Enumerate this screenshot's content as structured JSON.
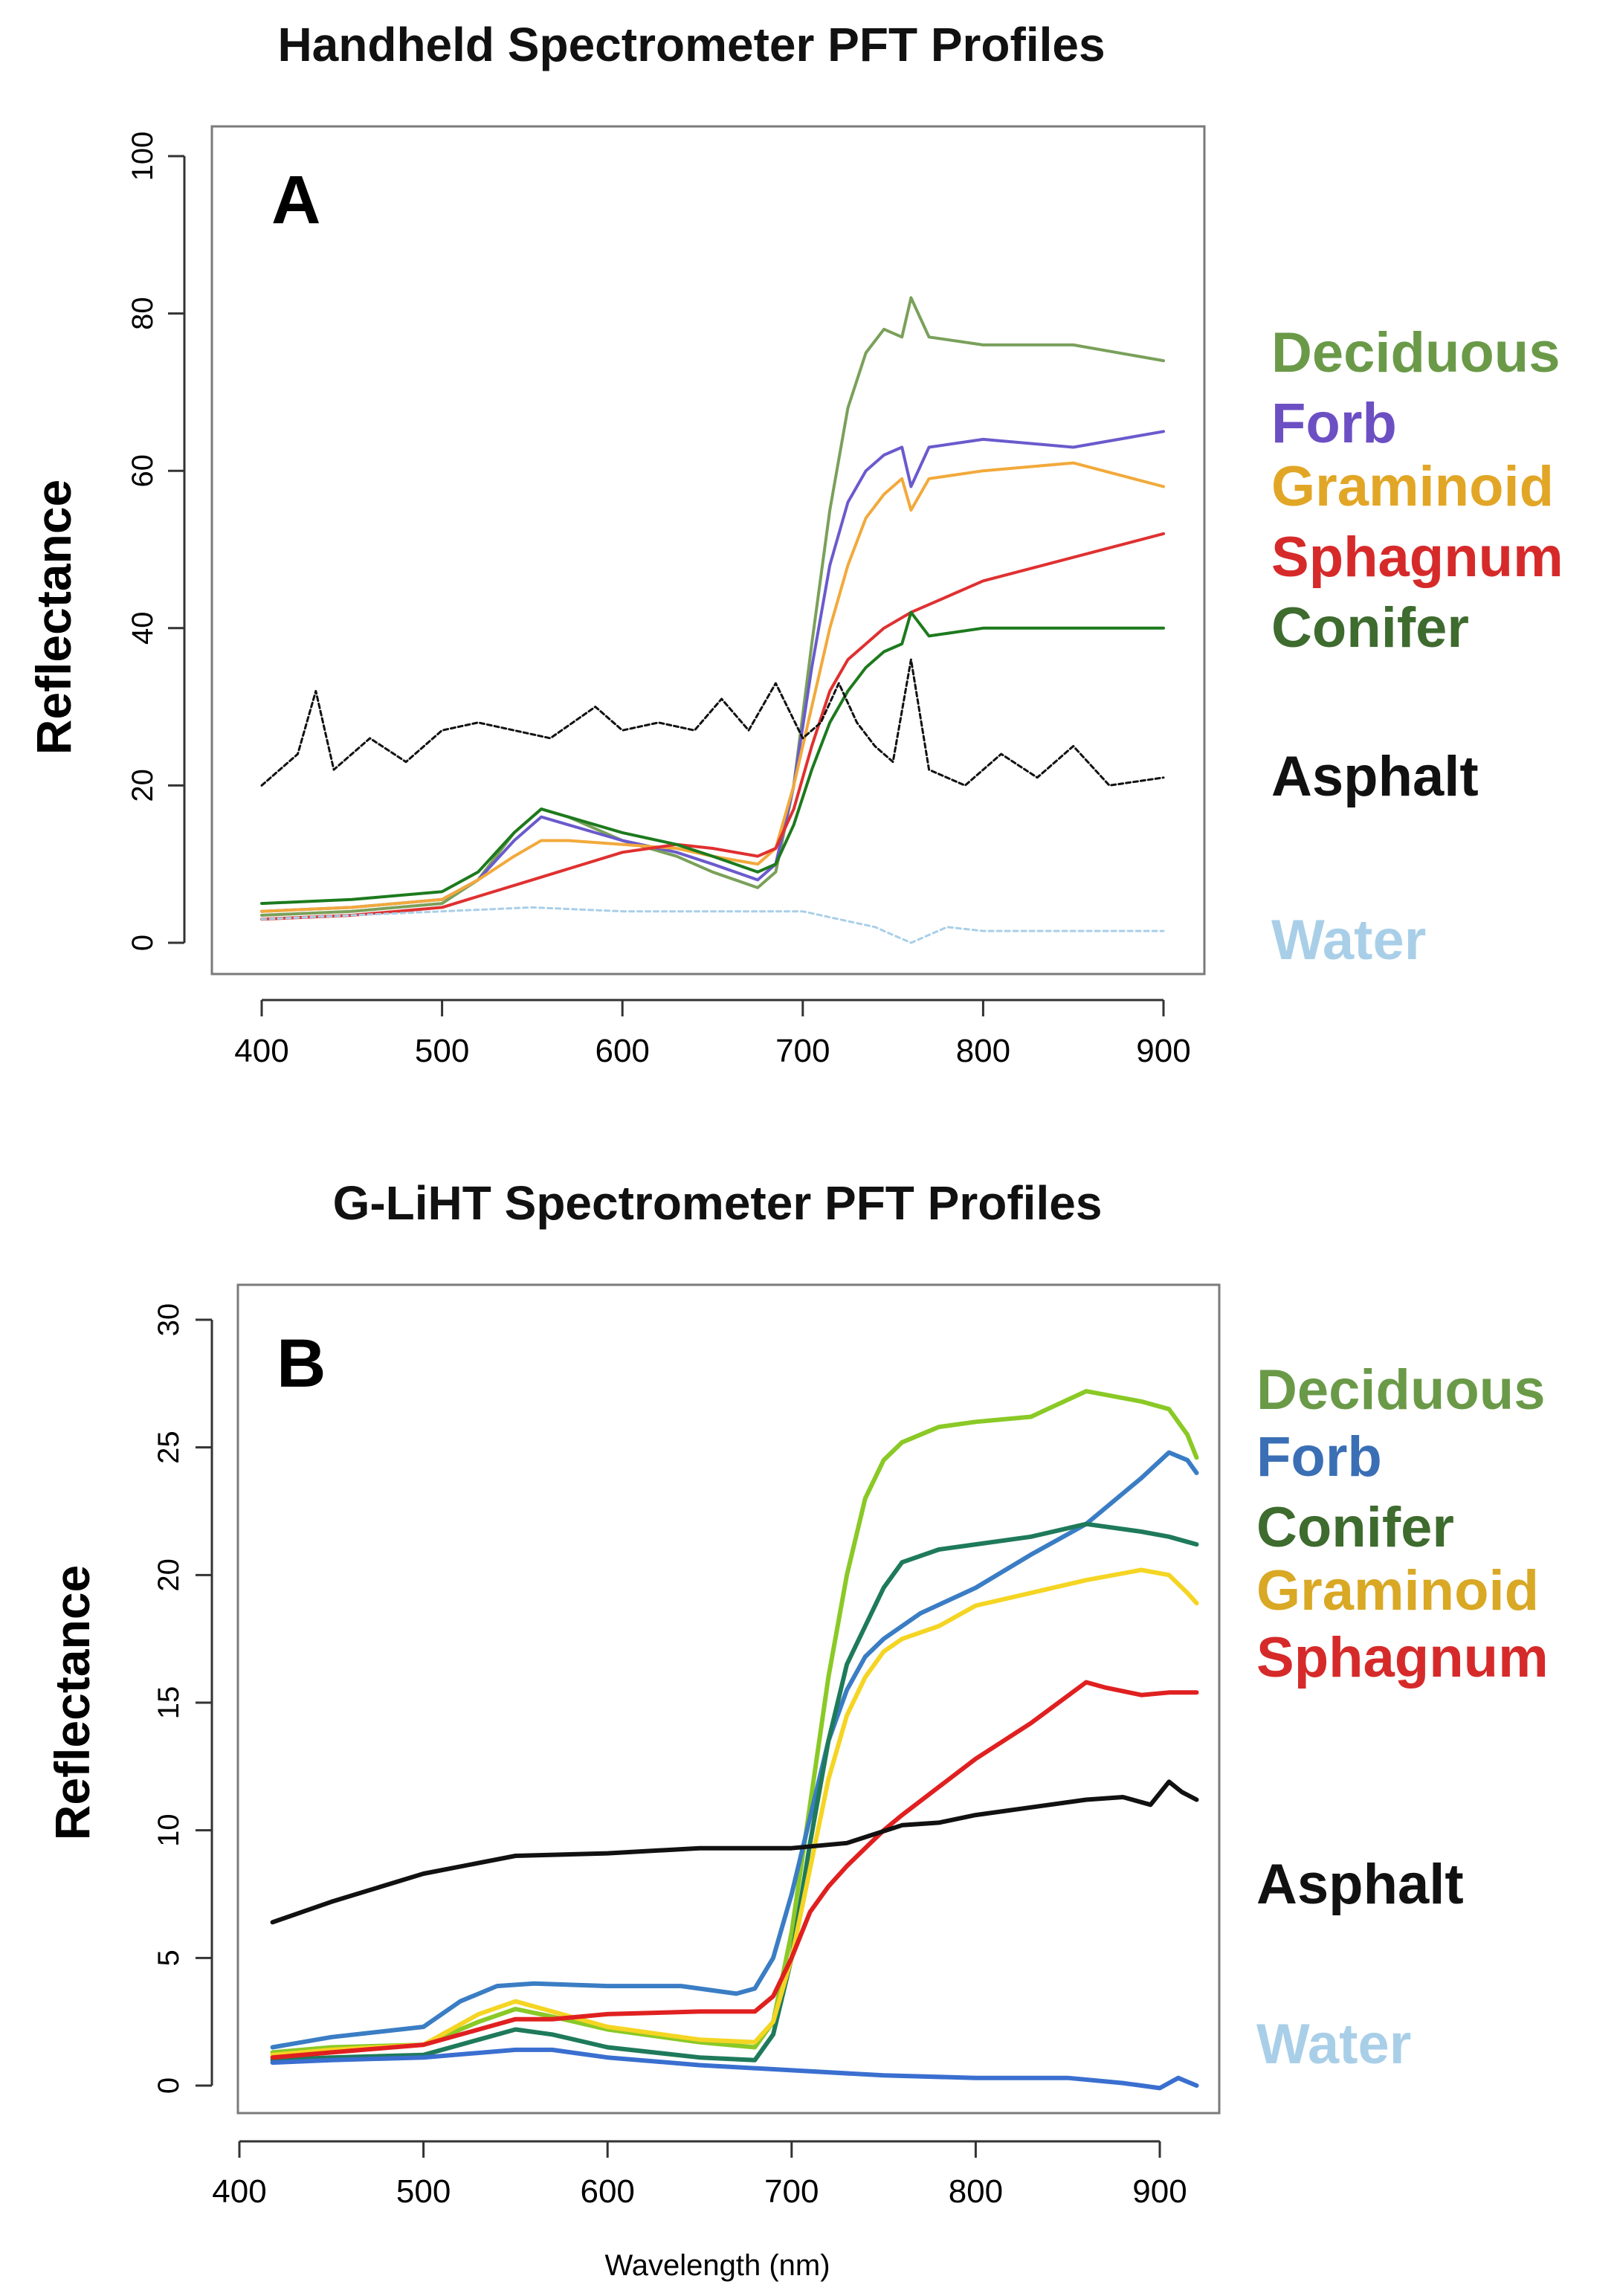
{
  "chart_data": [
    {
      "type": "line",
      "title": "Handheld Spectrometer PFT Profiles",
      "panel_label": "A",
      "ylabel": "Reflectance",
      "xlabel": "",
      "xlim": [
        400,
        900
      ],
      "ylim": [
        0,
        100
      ],
      "xticks": [
        400,
        500,
        600,
        700,
        800,
        900
      ],
      "yticks": [
        0,
        20,
        40,
        60,
        80,
        100
      ],
      "grid": false,
      "legend_position": "right",
      "series": [
        {
          "name": "Deciduous",
          "color": "#6a9a48",
          "line_color": "#7aa05a",
          "x": [
            400,
            450,
            500,
            520,
            540,
            555,
            570,
            600,
            630,
            650,
            675,
            685,
            695,
            705,
            715,
            725,
            735,
            745,
            755,
            760,
            770,
            800,
            850,
            900
          ],
          "y": [
            3.5,
            4,
            5,
            8,
            14,
            17,
            16,
            13,
            11,
            9,
            7,
            9,
            20,
            38,
            55,
            68,
            75,
            78,
            77,
            82,
            77,
            76,
            76,
            74
          ]
        },
        {
          "name": "Forb",
          "color": "#6d4fc4",
          "line_color": "#6a5acd",
          "x": [
            400,
            450,
            500,
            520,
            540,
            555,
            570,
            600,
            630,
            650,
            675,
            685,
            695,
            705,
            715,
            725,
            735,
            745,
            755,
            760,
            770,
            800,
            850,
            900
          ],
          "y": [
            4,
            4.5,
            5.5,
            8,
            13,
            16,
            15,
            13,
            11.5,
            10,
            8,
            10,
            20,
            35,
            48,
            56,
            60,
            62,
            63,
            58,
            63,
            64,
            63,
            65
          ]
        },
        {
          "name": "Graminoid",
          "color": "#e2a626",
          "line_color": "#f2a93b",
          "x": [
            400,
            450,
            500,
            520,
            540,
            555,
            570,
            600,
            630,
            650,
            675,
            685,
            695,
            705,
            715,
            725,
            735,
            745,
            755,
            760,
            770,
            800,
            850,
            900
          ],
          "y": [
            4,
            4.5,
            5.5,
            8,
            11,
            13,
            13,
            12.5,
            12,
            11,
            10,
            12,
            20,
            30,
            40,
            48,
            54,
            57,
            59,
            55,
            59,
            60,
            61,
            58
          ]
        },
        {
          "name": "Sphagnum",
          "color": "#d62a2a",
          "line_color": "#e03030",
          "x": [
            400,
            450,
            500,
            550,
            600,
            630,
            650,
            675,
            685,
            695,
            705,
            715,
            725,
            735,
            745,
            760,
            780,
            800,
            850,
            900
          ],
          "y": [
            3,
            3.5,
            4.5,
            8,
            11.5,
            12.5,
            12,
            11,
            12,
            17,
            25,
            32,
            36,
            38,
            40,
            42,
            44,
            46,
            49,
            52
          ]
        },
        {
          "name": "Conifer",
          "color": "#3e6b2e",
          "line_color": "#1d7a1d",
          "x": [
            400,
            450,
            500,
            520,
            540,
            555,
            570,
            600,
            630,
            650,
            675,
            685,
            695,
            705,
            715,
            725,
            735,
            745,
            755,
            760,
            770,
            800,
            850,
            900
          ],
          "y": [
            5,
            5.5,
            6.5,
            9,
            14,
            17,
            16,
            14,
            12.5,
            11,
            9,
            10,
            15,
            22,
            28,
            32,
            35,
            37,
            38,
            42,
            39,
            40,
            40,
            40
          ]
        },
        {
          "name": "Asphalt",
          "color": "#111111",
          "line_color": "#111111",
          "x": [
            400,
            410,
            420,
            430,
            440,
            460,
            480,
            500,
            520,
            540,
            560,
            585,
            600,
            620,
            640,
            655,
            670,
            685,
            700,
            710,
            720,
            730,
            740,
            750,
            760,
            770,
            790,
            810,
            830,
            850,
            870,
            900
          ],
          "y": [
            20,
            22,
            24,
            32,
            22,
            26,
            23,
            27,
            28,
            27,
            26,
            30,
            27,
            28,
            27,
            31,
            27,
            33,
            26,
            28,
            33,
            28,
            25,
            23,
            36,
            22,
            20,
            24,
            21,
            25,
            20,
            21
          ]
        },
        {
          "name": "Water",
          "color": "#a9cfe8",
          "line_color": "#a9cfe8",
          "x": [
            400,
            450,
            500,
            550,
            600,
            650,
            700,
            720,
            740,
            760,
            780,
            800,
            850,
            900
          ],
          "y": [
            3,
            3.5,
            4,
            4.5,
            4,
            4,
            4,
            3,
            2,
            0,
            2,
            1.5,
            1.5,
            1.5
          ]
        }
      ]
    },
    {
      "type": "line",
      "title": "G-LiHT Spectrometer PFT Profiles",
      "panel_label": "B",
      "ylabel": "Reflectance",
      "xlabel": "Wavelength (nm)",
      "xlim": [
        400,
        920
      ],
      "ylim": [
        0,
        30
      ],
      "xticks": [
        400,
        500,
        600,
        700,
        800,
        900
      ],
      "yticks": [
        0,
        5,
        10,
        15,
        20,
        25,
        30
      ],
      "grid": false,
      "legend_position": "right",
      "series": [
        {
          "name": "Deciduous",
          "color": "#6a9a48",
          "line_color": "#8ac926",
          "x": [
            418,
            450,
            500,
            530,
            550,
            570,
            600,
            650,
            680,
            690,
            700,
            710,
            720,
            730,
            740,
            750,
            760,
            780,
            800,
            830,
            860,
            890,
            905,
            915,
            920
          ],
          "y": [
            1.3,
            1.5,
            1.6,
            2.5,
            3.0,
            2.7,
            2.2,
            1.7,
            1.5,
            2.5,
            6,
            11,
            16,
            20,
            23,
            24.5,
            25.2,
            25.8,
            26,
            26.2,
            27.2,
            26.8,
            26.5,
            25.5,
            24.6
          ]
        },
        {
          "name": "Forb",
          "color": "#3a6fb5",
          "line_color": "#3a7dc4",
          "x": [
            418,
            450,
            500,
            520,
            540,
            560,
            600,
            640,
            670,
            680,
            690,
            700,
            710,
            720,
            730,
            740,
            750,
            770,
            800,
            830,
            860,
            890,
            905,
            915,
            920
          ],
          "y": [
            1.5,
            1.9,
            2.3,
            3.3,
            3.9,
            4.0,
            3.9,
            3.9,
            3.6,
            3.8,
            5.0,
            7.5,
            10.5,
            13.5,
            15.5,
            16.8,
            17.5,
            18.5,
            19.5,
            20.8,
            22.0,
            23.8,
            24.8,
            24.5,
            24.0
          ]
        },
        {
          "name": "Conifer",
          "color": "#3e6b2e",
          "line_color": "#1e7a5a",
          "x": [
            418,
            450,
            500,
            530,
            550,
            570,
            600,
            650,
            680,
            690,
            700,
            710,
            720,
            730,
            740,
            750,
            760,
            780,
            800,
            830,
            860,
            890,
            905,
            915,
            920
          ],
          "y": [
            1.0,
            1.1,
            1.2,
            1.8,
            2.2,
            2.0,
            1.5,
            1.1,
            1.0,
            2.0,
            5.0,
            9.5,
            13.5,
            16.5,
            18.0,
            19.5,
            20.5,
            21.0,
            21.2,
            21.5,
            22.0,
            21.7,
            21.5,
            21.3,
            21.2
          ]
        },
        {
          "name": "Graminoid",
          "color": "#d9a824",
          "line_color": "#f5d523",
          "x": [
            418,
            450,
            500,
            530,
            550,
            570,
            600,
            650,
            680,
            690,
            700,
            710,
            720,
            730,
            740,
            750,
            760,
            780,
            800,
            830,
            860,
            890,
            905,
            915,
            920
          ],
          "y": [
            1.2,
            1.4,
            1.6,
            2.8,
            3.3,
            2.9,
            2.3,
            1.8,
            1.7,
            2.5,
            5.0,
            8.5,
            12.0,
            14.5,
            16.0,
            17.0,
            17.5,
            18.0,
            18.8,
            19.3,
            19.8,
            20.2,
            20.0,
            19.3,
            18.9
          ]
        },
        {
          "name": "Sphagnum",
          "color": "#d62a2a",
          "line_color": "#e02020",
          "x": [
            418,
            450,
            500,
            530,
            550,
            570,
            600,
            650,
            680,
            690,
            700,
            710,
            720,
            730,
            740,
            750,
            760,
            780,
            800,
            830,
            860,
            870,
            890,
            905,
            920
          ],
          "y": [
            1.1,
            1.3,
            1.6,
            2.2,
            2.6,
            2.6,
            2.8,
            2.9,
            2.9,
            3.5,
            5.0,
            6.8,
            7.8,
            8.6,
            9.3,
            10.0,
            10.6,
            11.7,
            12.8,
            14.2,
            15.8,
            15.6,
            15.3,
            15.4,
            15.4
          ]
        },
        {
          "name": "Asphalt",
          "color": "#111111",
          "line_color": "#111111",
          "x": [
            418,
            450,
            500,
            550,
            600,
            650,
            700,
            730,
            760,
            780,
            800,
            830,
            860,
            880,
            895,
            905,
            912,
            920
          ],
          "y": [
            6.4,
            7.2,
            8.3,
            9.0,
            9.1,
            9.3,
            9.3,
            9.5,
            10.2,
            10.3,
            10.6,
            10.9,
            11.2,
            11.3,
            11.0,
            11.9,
            11.5,
            11.2
          ]
        },
        {
          "name": "Water",
          "color": "#a9cfe8",
          "line_color": "#3a6fd0",
          "x": [
            418,
            450,
            500,
            550,
            570,
            600,
            650,
            700,
            750,
            800,
            850,
            880,
            900,
            910,
            920
          ],
          "y": [
            0.9,
            1.0,
            1.1,
            1.4,
            1.4,
            1.1,
            0.8,
            0.6,
            0.4,
            0.3,
            0.3,
            0.1,
            -0.1,
            0.3,
            0.0
          ]
        }
      ]
    }
  ]
}
